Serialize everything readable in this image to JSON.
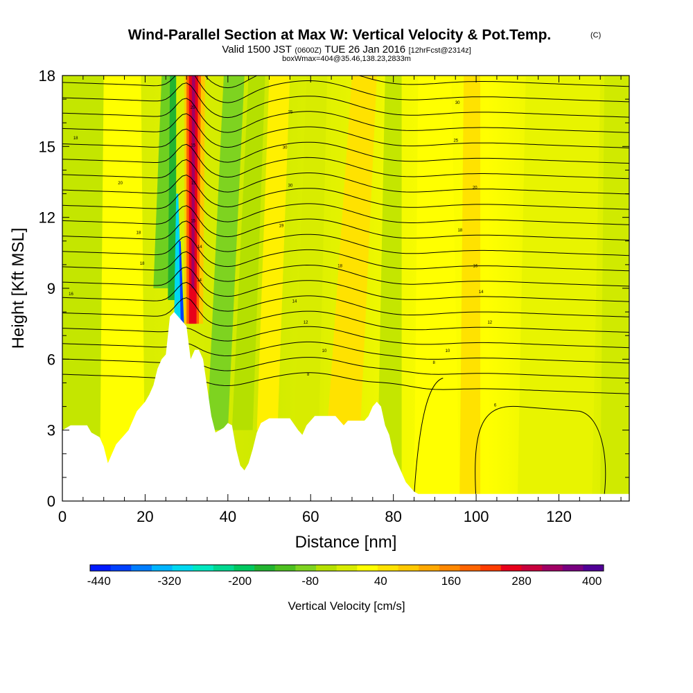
{
  "chart_data": {
    "type": "contour",
    "title": "Wind-Parallel Section at Max W: Vertical Velocity & Pot.Temp.",
    "title_mark": "(C)",
    "subtitle": {
      "prefix": "Valid 1500 JST",
      "utc": "(0600Z)",
      "date": "TUE 26 Jan 2016",
      "forecast": "[12hrFcst@2314z]"
    },
    "subtitle2": "boxWmax=404@35.46,138.23,2833m",
    "xlabel": "Distance [nm]",
    "ylabel": "Height [Kft MSL]",
    "xlim": [
      0,
      137
    ],
    "ylim": [
      0,
      18
    ],
    "x_ticks": [
      {
        "value": 0,
        "label": "0"
      },
      {
        "value": 20,
        "label": "20"
      },
      {
        "value": 40,
        "label": "40"
      },
      {
        "value": 60,
        "label": "60"
      },
      {
        "value": 80,
        "label": "80"
      },
      {
        "value": 100,
        "label": "100"
      },
      {
        "value": 120,
        "label": "120"
      }
    ],
    "y_ticks": [
      {
        "value": 0,
        "label": "0"
      },
      {
        "value": 3,
        "label": "3"
      },
      {
        "value": 6,
        "label": "6"
      },
      {
        "value": 9,
        "label": "9"
      },
      {
        "value": 12,
        "label": "12"
      },
      {
        "value": 15,
        "label": "15"
      },
      {
        "value": 18,
        "label": "18"
      }
    ],
    "terrain_kft": [
      [
        0,
        3.0
      ],
      [
        2,
        3.2
      ],
      [
        6,
        3.2
      ],
      [
        7,
        2.9
      ],
      [
        9,
        2.7
      ],
      [
        10,
        2.3
      ],
      [
        11,
        1.6
      ],
      [
        12,
        2.0
      ],
      [
        13,
        2.4
      ],
      [
        15,
        2.8
      ],
      [
        16,
        3.0
      ],
      [
        17,
        3.4
      ],
      [
        18,
        3.8
      ],
      [
        19,
        4.0
      ],
      [
        20,
        4.2
      ],
      [
        21,
        4.5
      ],
      [
        22,
        4.9
      ],
      [
        23,
        5.6
      ],
      [
        24,
        6.0
      ],
      [
        25,
        6.2
      ],
      [
        26,
        7.8
      ],
      [
        27,
        8.0
      ],
      [
        28,
        7.8
      ],
      [
        29,
        7.6
      ],
      [
        30,
        7.4
      ],
      [
        31,
        6.0
      ],
      [
        32,
        6.4
      ],
      [
        33,
        6.4
      ],
      [
        34,
        6.0
      ],
      [
        35,
        4.8
      ],
      [
        36,
        3.6
      ],
      [
        37,
        2.9
      ],
      [
        38,
        3.0
      ],
      [
        39,
        3.1
      ],
      [
        40,
        3.3
      ],
      [
        41,
        3.2
      ],
      [
        42,
        2.2
      ],
      [
        43,
        1.5
      ],
      [
        44,
        1.3
      ],
      [
        45,
        1.6
      ],
      [
        46,
        2.2
      ],
      [
        47,
        2.9
      ],
      [
        48,
        3.3
      ],
      [
        50,
        3.5
      ],
      [
        55,
        3.5
      ],
      [
        57,
        3.0
      ],
      [
        58,
        2.8
      ],
      [
        59,
        3.2
      ],
      [
        61,
        3.6
      ],
      [
        66,
        3.6
      ],
      [
        67,
        3.4
      ],
      [
        68,
        3.2
      ],
      [
        69,
        3.4
      ],
      [
        73,
        3.4
      ],
      [
        74,
        3.6
      ],
      [
        75,
        4.0
      ],
      [
        76,
        4.2
      ],
      [
        77,
        4.0
      ],
      [
        78,
        3.2
      ],
      [
        79,
        2.8
      ],
      [
        80,
        2.0
      ],
      [
        81,
        1.6
      ],
      [
        82,
        1.2
      ],
      [
        83,
        0.8
      ],
      [
        84,
        0.6
      ],
      [
        85,
        0.4
      ],
      [
        86,
        0.3
      ],
      [
        137,
        0.3
      ]
    ],
    "contour_labels": [
      {
        "x": 3.2,
        "y": 15.3,
        "text": "18"
      },
      {
        "x": 14,
        "y": 13.4,
        "text": "20"
      },
      {
        "x": 18.4,
        "y": 11.3,
        "text": "18"
      },
      {
        "x": 19.3,
        "y": 10.0,
        "text": "18"
      },
      {
        "x": 2.1,
        "y": 8.7,
        "text": "16"
      },
      {
        "x": 31.5,
        "y": 16.6,
        "text": "25"
      },
      {
        "x": 31.6,
        "y": 15.0,
        "text": "15"
      },
      {
        "x": 31.7,
        "y": 13.4,
        "text": "15"
      },
      {
        "x": 31.6,
        "y": 11.8,
        "text": "15"
      },
      {
        "x": 33.2,
        "y": 10.7,
        "text": "14"
      },
      {
        "x": 33.1,
        "y": 9.3,
        "text": "14"
      },
      {
        "x": 55.1,
        "y": 16.4,
        "text": "25"
      },
      {
        "x": 53.8,
        "y": 14.9,
        "text": "30"
      },
      {
        "x": 55.1,
        "y": 13.3,
        "text": "30"
      },
      {
        "x": 52.9,
        "y": 11.6,
        "text": "19"
      },
      {
        "x": 67.1,
        "y": 9.9,
        "text": "18"
      },
      {
        "x": 56.1,
        "y": 8.4,
        "text": "14"
      },
      {
        "x": 58.8,
        "y": 7.5,
        "text": "12"
      },
      {
        "x": 63.3,
        "y": 6.3,
        "text": "10"
      },
      {
        "x": 59.4,
        "y": 5.3,
        "text": "8"
      },
      {
        "x": 95.5,
        "y": 16.8,
        "text": "30"
      },
      {
        "x": 95.1,
        "y": 15.2,
        "text": "25"
      },
      {
        "x": 99.7,
        "y": 13.2,
        "text": "20"
      },
      {
        "x": 96.1,
        "y": 11.4,
        "text": "18"
      },
      {
        "x": 99.8,
        "y": 9.9,
        "text": "16"
      },
      {
        "x": 101.2,
        "y": 8.8,
        "text": "14"
      },
      {
        "x": 103.3,
        "y": 7.5,
        "text": "12"
      },
      {
        "x": 93.1,
        "y": 6.3,
        "text": "10"
      },
      {
        "x": 89.8,
        "y": 5.8,
        "text": "8"
      },
      {
        "x": 104.6,
        "y": 4.0,
        "text": "6"
      }
    ],
    "colorbar": {
      "label": "Vertical Velocity [cm/s]",
      "tick_labels": [
        "-440",
        "-320",
        "-200",
        "-80",
        "40",
        "160",
        "280",
        "400"
      ],
      "colors": [
        "#0019ff",
        "#0040ff",
        "#007dff",
        "#00b4ff",
        "#00d8f0",
        "#00e8c0",
        "#00d890",
        "#00c860",
        "#22b430",
        "#4dc020",
        "#7ed320",
        "#b5e000",
        "#d8ec00",
        "#ffff00",
        "#ffe200",
        "#ffc800",
        "#ffa800",
        "#ff8800",
        "#ff6400",
        "#ff3c00",
        "#e8001a",
        "#c8003c",
        "#a00064",
        "#780080",
        "#500096"
      ]
    }
  }
}
